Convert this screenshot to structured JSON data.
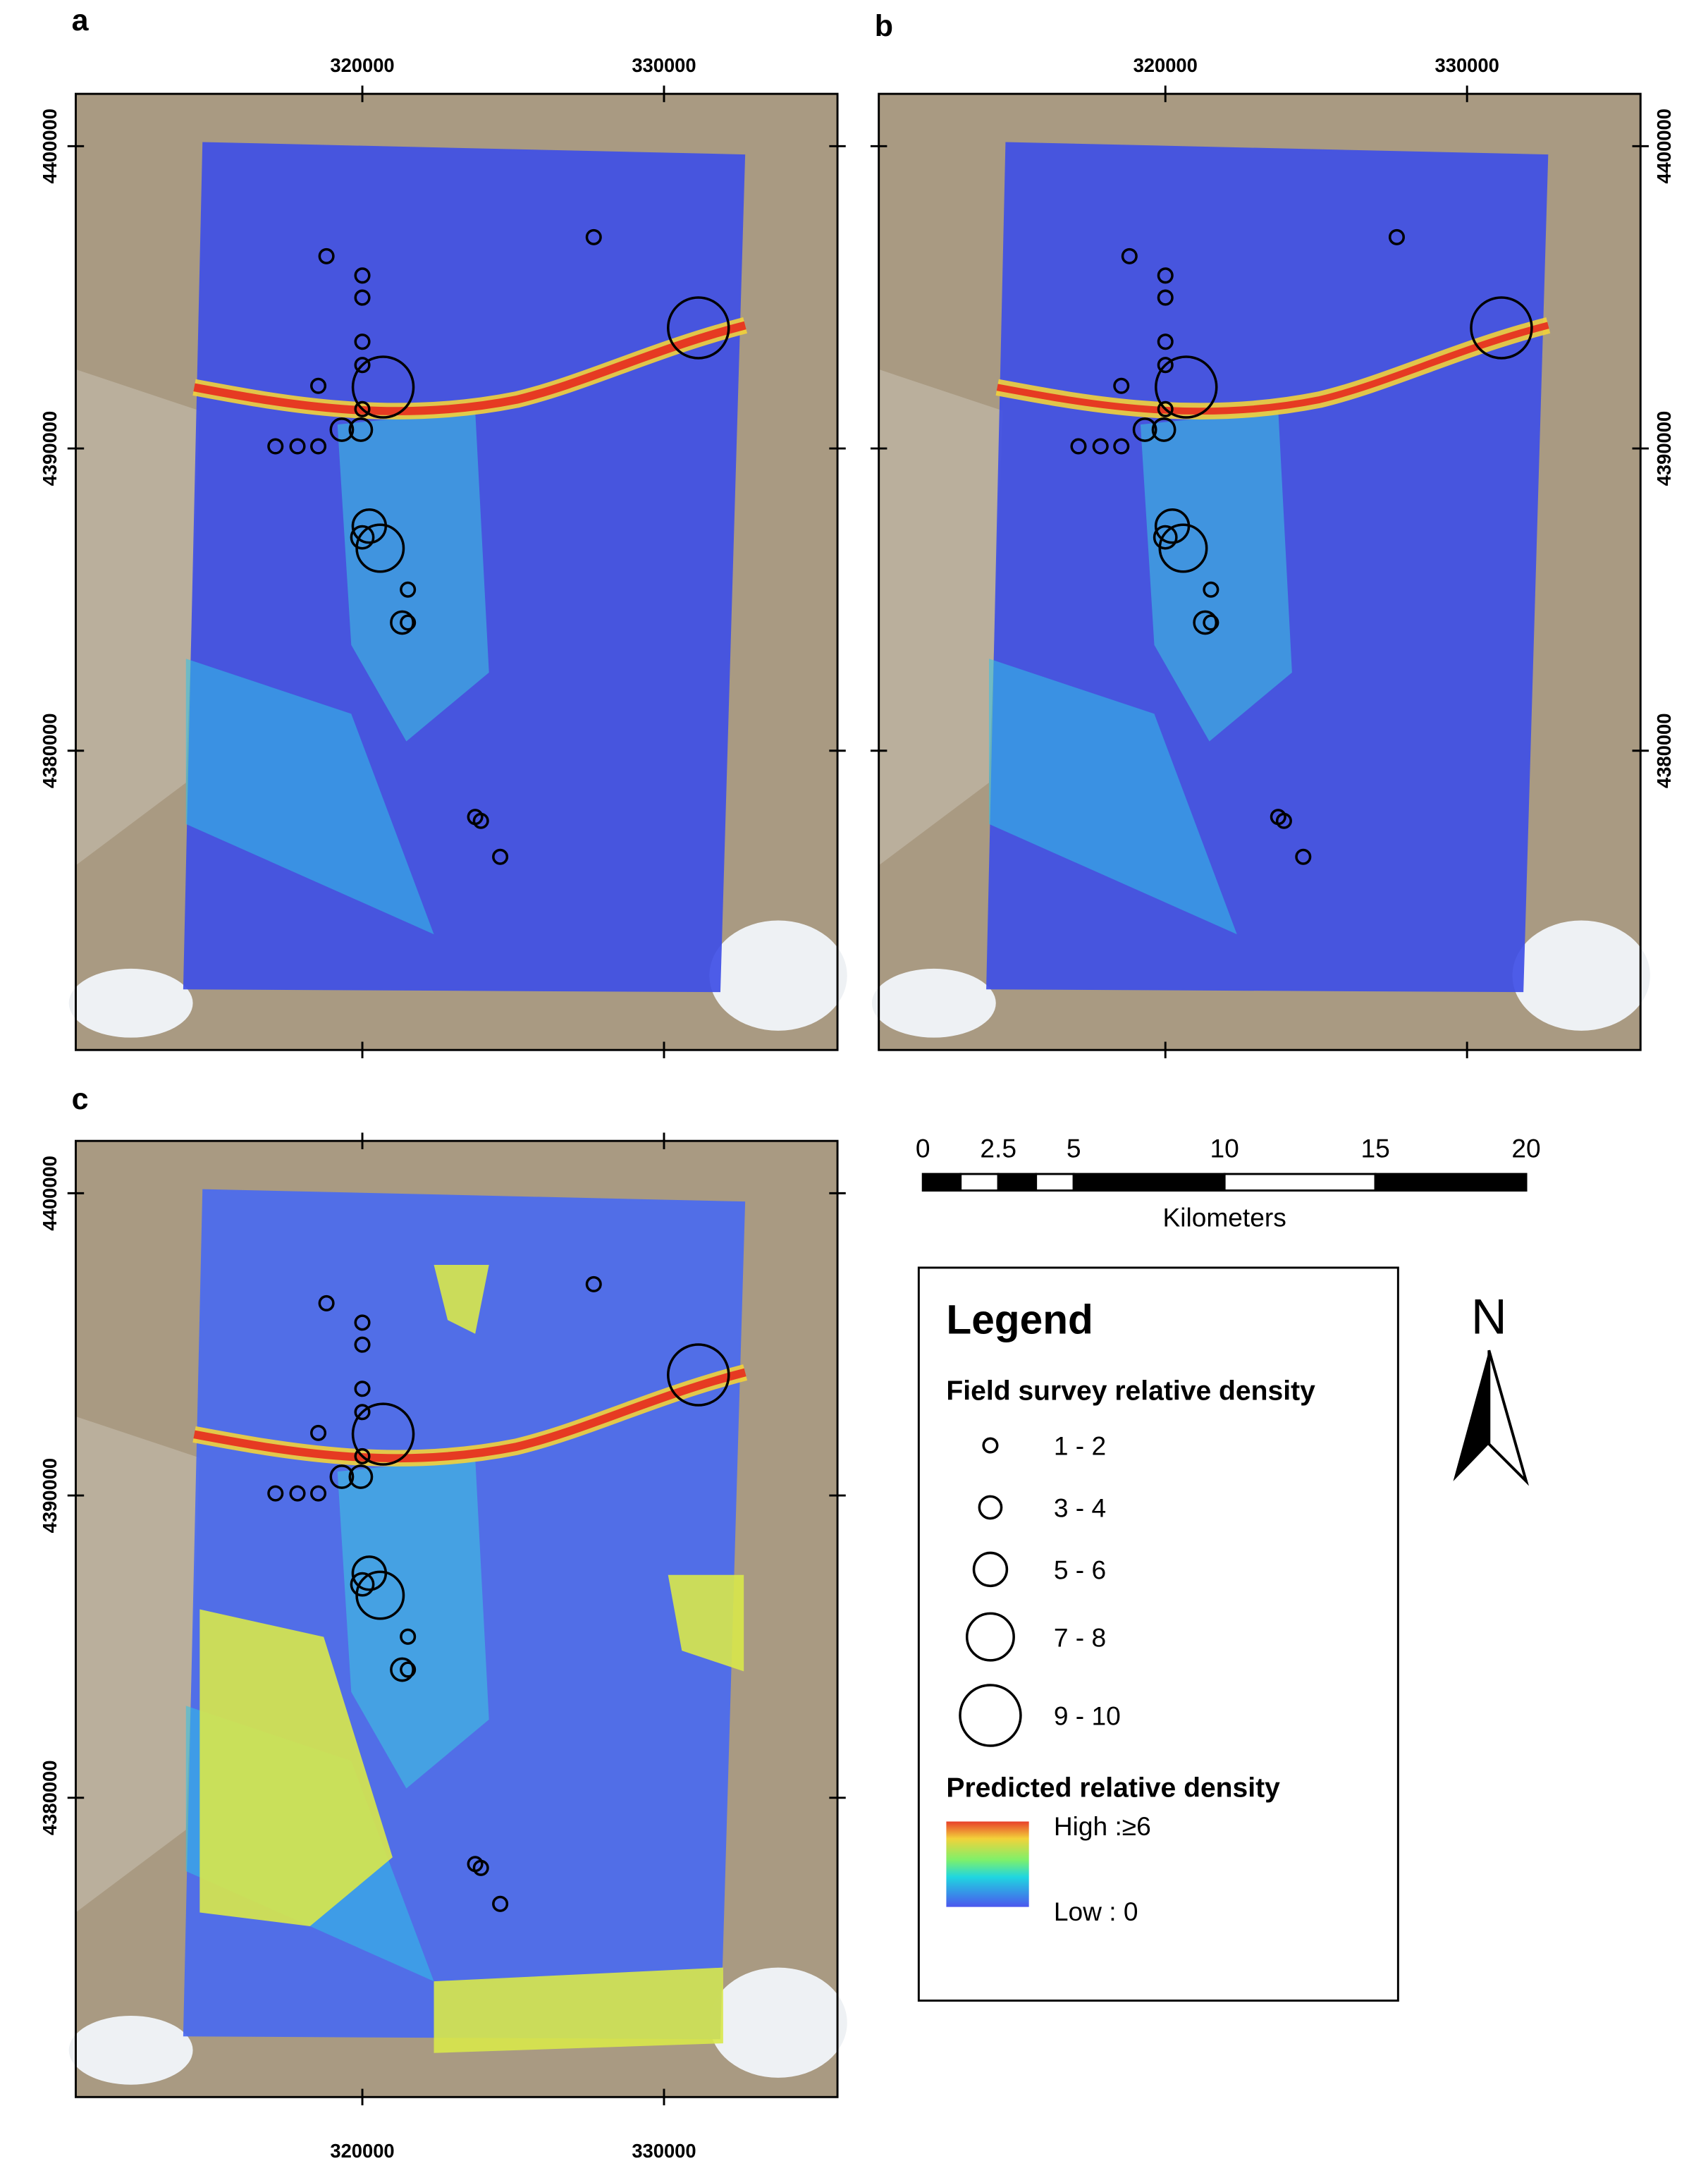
{
  "panels": [
    {
      "label": "a"
    },
    {
      "label": "b"
    },
    {
      "label": "c"
    }
  ],
  "map": {
    "xlim": [
      310500,
      335750
    ],
    "ylim": [
      4370100,
      4401730
    ],
    "xticks": [
      320000,
      330000
    ],
    "yticks": [
      4380000,
      4390000,
      4400000
    ]
  },
  "survey_sites": [
    {
      "easting": 318810,
      "northing": 4396360,
      "class": 0
    },
    {
      "easting": 320000,
      "northing": 4395720,
      "class": 0
    },
    {
      "easting": 320000,
      "northing": 4394990,
      "class": 0
    },
    {
      "easting": 320000,
      "northing": 4393530,
      "class": 0
    },
    {
      "easting": 320000,
      "northing": 4392760,
      "class": 0
    },
    {
      "easting": 318540,
      "northing": 4392070,
      "class": 0
    },
    {
      "easting": 320690,
      "northing": 4392030,
      "class": 4
    },
    {
      "easting": 320000,
      "northing": 4391300,
      "class": 0
    },
    {
      "easting": 319320,
      "northing": 4390620,
      "class": 1
    },
    {
      "easting": 319950,
      "northing": 4390620,
      "class": 1
    },
    {
      "easting": 317120,
      "northing": 4390070,
      "class": 0
    },
    {
      "easting": 317850,
      "northing": 4390070,
      "class": 0
    },
    {
      "easting": 318540,
      "northing": 4390070,
      "class": 0
    },
    {
      "easting": 320230,
      "northing": 4387430,
      "class": 2
    },
    {
      "easting": 320590,
      "northing": 4386700,
      "class": 3
    },
    {
      "easting": 320000,
      "northing": 4387060,
      "class": 1
    },
    {
      "easting": 321510,
      "northing": 4385330,
      "class": 0
    },
    {
      "easting": 321320,
      "northing": 4384240,
      "class": 1
    },
    {
      "easting": 321510,
      "northing": 4384240,
      "class": 0
    },
    {
      "easting": 323740,
      "northing": 4377810,
      "class": 0
    },
    {
      "easting": 323930,
      "northing": 4377680,
      "class": 0
    },
    {
      "easting": 324570,
      "northing": 4376490,
      "class": 0
    },
    {
      "easting": 327670,
      "northing": 4396990,
      "class": 0
    },
    {
      "easting": 331140,
      "northing": 4393990,
      "class": 4
    }
  ],
  "scale_bar": {
    "ticks": [
      0,
      2.5,
      5,
      10,
      15,
      20
    ],
    "unit": "Kilometers"
  },
  "legend": {
    "title": "Legend",
    "survey_title": "Field survey relative density",
    "classes": [
      "1 - 2",
      "3 - 4",
      "5 - 6",
      "7 - 8",
      "9 - 10"
    ],
    "predicted_title": "Predicted relative density",
    "high": "High :≥6",
    "low": "Low : 0"
  },
  "north": "N"
}
